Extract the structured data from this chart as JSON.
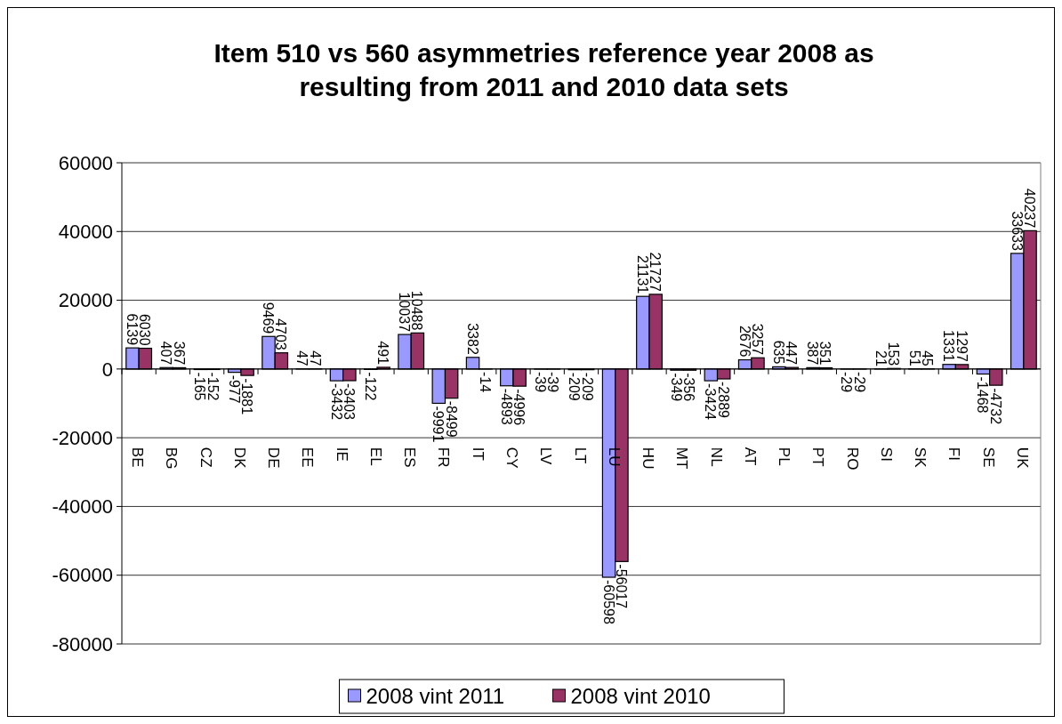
{
  "chart_data": {
    "type": "bar",
    "title": "Item 510 vs 560 asymmetries reference year 2008 as resulting from 2011 and 2010 data sets",
    "categories": [
      "BE",
      "BG",
      "CZ",
      "DK",
      "DE",
      "EE",
      "IE",
      "EL",
      "ES",
      "FR",
      "IT",
      "CY",
      "LV",
      "LT",
      "LU",
      "HU",
      "MT",
      "NL",
      "AT",
      "PL",
      "PT",
      "RO",
      "SI",
      "SK",
      "FI",
      "SE",
      "UK"
    ],
    "series": [
      {
        "name": "2008 vint 2011",
        "color": "#9999ff",
        "values": [
          6139,
          407,
          -165,
          -977,
          9469,
          47,
          -3432,
          -122,
          10037,
          -9991,
          3382,
          -4893,
          -39,
          -209,
          -60598,
          21131,
          -349,
          -3424,
          2676,
          635,
          387,
          -29,
          21,
          51,
          1331,
          -1468,
          33633
        ]
      },
      {
        "name": "2008 vint 2010",
        "color": "#993366",
        "values": [
          6030,
          367,
          -152,
          -1881,
          4703,
          47,
          -3403,
          491,
          10488,
          -8499,
          -14,
          -4996,
          -39,
          -209,
          -56017,
          21727,
          -356,
          -2889,
          3257,
          447,
          351,
          -29,
          153,
          45,
          1297,
          -4732,
          40237
        ]
      }
    ],
    "ylim": [
      -80000,
      60000
    ],
    "yticks": [
      -80000,
      -60000,
      -40000,
      -20000,
      0,
      20000,
      40000,
      60000
    ],
    "grid": "y",
    "legend": "bottom",
    "data_labels": true
  }
}
